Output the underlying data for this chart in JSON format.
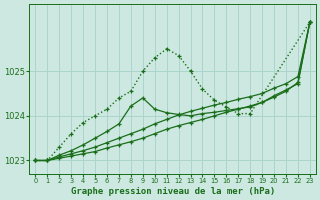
{
  "xlabel": "Graphe pression niveau de la mer (hPa)",
  "xlim": [
    -0.5,
    23.5
  ],
  "ylim": [
    1022.7,
    1026.5
  ],
  "yticks": [
    1023,
    1024,
    1025
  ],
  "xticks": [
    0,
    1,
    2,
    3,
    4,
    5,
    6,
    7,
    8,
    9,
    10,
    11,
    12,
    13,
    14,
    15,
    16,
    17,
    18,
    19,
    20,
    21,
    22,
    23
  ],
  "background_color": "#cce8e0",
  "grid_color": "#aad4cc",
  "line_color": "#1a6e1a",
  "curves": [
    {
      "x": [
        0,
        1,
        2,
        3,
        4,
        5,
        6,
        7,
        8,
        9,
        10,
        11,
        12,
        13,
        14,
        15,
        16,
        17,
        18,
        23
      ],
      "y": [
        1023.0,
        1023.0,
        1023.3,
        1023.6,
        1023.85,
        1024.0,
        1024.15,
        1024.4,
        1024.55,
        1025.0,
        1025.3,
        1025.5,
        1025.35,
        1025.0,
        1024.6,
        1024.35,
        1024.2,
        1024.05,
        1024.05,
        1026.1
      ],
      "linestyle": "dotted",
      "linewidth": 1.0
    },
    {
      "x": [
        0,
        1,
        2,
        3,
        4,
        5,
        6,
        7,
        8,
        9,
        10,
        11,
        12,
        13,
        14,
        15,
        16,
        17,
        18,
        19,
        20,
        21,
        22,
        23
      ],
      "y": [
        1023.0,
        1023.0,
        1023.05,
        1023.1,
        1023.15,
        1023.2,
        1023.28,
        1023.35,
        1023.42,
        1023.5,
        1023.6,
        1023.7,
        1023.78,
        1023.85,
        1023.92,
        1024.0,
        1024.08,
        1024.15,
        1024.22,
        1024.3,
        1024.42,
        1024.55,
        1024.75,
        1026.1
      ],
      "linestyle": "solid",
      "linewidth": 0.9
    },
    {
      "x": [
        0,
        1,
        2,
        3,
        4,
        5,
        6,
        7,
        8,
        9,
        10,
        11,
        12,
        13,
        14,
        15,
        16,
        17,
        18,
        19,
        20,
        21,
        22,
        23
      ],
      "y": [
        1023.0,
        1023.0,
        1023.08,
        1023.15,
        1023.22,
        1023.3,
        1023.4,
        1023.5,
        1023.6,
        1023.7,
        1023.82,
        1023.92,
        1024.02,
        1024.1,
        1024.17,
        1024.24,
        1024.3,
        1024.37,
        1024.43,
        1024.5,
        1024.62,
        1024.72,
        1024.88,
        1026.1
      ],
      "linestyle": "solid",
      "linewidth": 0.9
    },
    {
      "x": [
        0,
        1,
        2,
        3,
        4,
        5,
        6,
        7,
        8,
        9,
        10,
        11,
        12,
        13,
        14,
        15,
        16,
        17,
        18,
        19,
        20,
        21,
        22,
        23
      ],
      "y": [
        1023.0,
        1023.0,
        1023.12,
        1023.22,
        1023.35,
        1023.5,
        1023.65,
        1023.82,
        1024.22,
        1024.4,
        1024.15,
        1024.07,
        1024.03,
        1024.0,
        1024.05,
        1024.08,
        1024.12,
        1024.16,
        1024.2,
        1024.3,
        1024.45,
        1024.58,
        1024.72,
        1026.1
      ],
      "linestyle": "solid",
      "linewidth": 0.9
    }
  ]
}
